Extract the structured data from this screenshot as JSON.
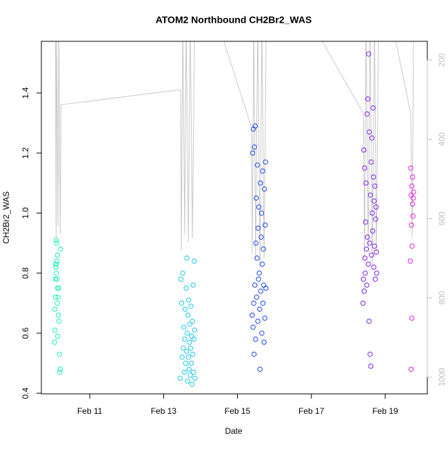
{
  "chart_data": {
    "type": "scatter",
    "title": "ATOM2 Northbound CH2Br2_WAS",
    "x_label": "Date",
    "y_label": "CH2Br2_WAS",
    "xlim": [
      9.69,
      20.14
    ],
    "xticks": [
      {
        "value": 11,
        "label": "Feb 11"
      },
      {
        "value": 13,
        "label": "Feb 13"
      },
      {
        "value": 15,
        "label": "Feb 15"
      },
      {
        "value": 17,
        "label": "Feb 17"
      },
      {
        "value": 19,
        "label": "Feb 19"
      }
    ],
    "ylim": [
      0.398,
      1.572
    ],
    "yticks": [
      0.4,
      0.6,
      0.8,
      {
        "value": 1,
        "label": "1.0"
      },
      1.2,
      1.4
    ],
    "y2lim": [
      1042,
      153
    ],
    "y2ticks": [
      200,
      400,
      600,
      800,
      1000
    ],
    "y2_color": "#bebebe",
    "series": [
      {
        "type": "line",
        "axis": "y2",
        "color": "#c8c8c8",
        "x": [
          10.07,
          10.09,
          10.1,
          10.14,
          10.16,
          10.2,
          10.22,
          13.46,
          13.48,
          13.52,
          13.57,
          13.61,
          13.67,
          13.72,
          13.78,
          13.84,
          14.45,
          15.38,
          15.4,
          15.44,
          15.49,
          15.55,
          15.61,
          15.66,
          15.72,
          15.78,
          16.97,
          18.41,
          18.44,
          18.48,
          18.54,
          18.59,
          18.65,
          18.71,
          18.76,
          18.82,
          19.17,
          19.69,
          19.73,
          19.77
        ],
        "values": [
          100,
          650,
          100,
          620,
          100,
          640,
          313,
          275,
          680,
          100,
          640,
          100,
          660,
          100,
          650,
          100,
          100,
          370,
          690,
          100,
          700,
          100,
          720,
          100,
          700,
          100,
          100,
          335,
          700,
          100,
          690,
          100,
          720,
          100,
          690,
          100,
          100,
          335,
          650,
          100
        ]
      },
      {
        "type": "scatter",
        "color": "#19f0b8",
        "x": [
          10.05,
          10.06,
          10.06,
          10.07,
          10.07,
          10.08,
          10.08,
          10.09,
          10.09,
          10.1,
          10.1,
          10.11,
          10.11,
          10.12,
          10.12,
          10.13,
          10.13,
          10.14,
          10.15,
          10.16,
          10.17,
          10.18,
          10.19,
          10.2,
          10.21
        ],
        "values": [
          0.57,
          0.61,
          0.68,
          0.72,
          0.78,
          0.82,
          0.83,
          0.91,
          0.83,
          0.9,
          0.8,
          0.84,
          0.78,
          0.7,
          0.75,
          0.86,
          0.59,
          0.72,
          0.66,
          0.75,
          0.64,
          0.53,
          0.47,
          0.48,
          0.88
        ]
      },
      {
        "type": "scatter",
        "color": "#1ec8e8",
        "x": [
          13.45,
          13.47,
          13.49,
          13.5,
          13.52,
          13.53,
          13.55,
          13.56,
          13.57,
          13.58,
          13.6,
          13.61,
          13.62,
          13.63,
          13.64,
          13.65,
          13.66,
          13.67,
          13.68,
          13.69,
          13.7,
          13.71,
          13.72,
          13.73,
          13.74,
          13.75,
          13.76,
          13.77,
          13.78,
          13.79,
          13.8,
          13.81,
          13.82,
          13.83,
          13.84,
          13.85
        ],
        "values": [
          0.45,
          0.78,
          0.7,
          0.52,
          0.8,
          0.55,
          0.62,
          0.47,
          0.58,
          0.68,
          0.5,
          0.75,
          0.54,
          0.85,
          0.6,
          0.44,
          0.66,
          0.52,
          0.71,
          0.48,
          0.57,
          0.63,
          0.46,
          0.55,
          0.69,
          0.5,
          0.59,
          0.43,
          0.64,
          0.53,
          0.76,
          0.47,
          0.58,
          0.84,
          0.61,
          0.45
        ]
      },
      {
        "type": "scatter",
        "color": "#1a44f0",
        "x": [
          15.4,
          15.41,
          15.42,
          15.43,
          15.44,
          15.45,
          15.46,
          15.47,
          15.48,
          15.49,
          15.5,
          15.51,
          15.52,
          15.53,
          15.54,
          15.55,
          15.56,
          15.57,
          15.58,
          15.59,
          15.6,
          15.61,
          15.62,
          15.63,
          15.64,
          15.65,
          15.66,
          15.67,
          15.68,
          15.69,
          15.7,
          15.71,
          15.72,
          15.73,
          15.74,
          15.75,
          15.76,
          15.77
        ],
        "values": [
          0.66,
          1.2,
          0.62,
          1.28,
          0.7,
          0.53,
          1.22,
          0.76,
          1.29,
          0.58,
          0.9,
          1.05,
          0.72,
          0.85,
          1.16,
          0.64,
          0.95,
          0.78,
          1.02,
          0.8,
          0.68,
          0.48,
          1.1,
          0.74,
          0.92,
          1.0,
          0.6,
          0.83,
          1.14,
          0.7,
          0.88,
          0.76,
          0.57,
          1.08,
          0.65,
          0.96,
          1.17,
          0.75
        ]
      },
      {
        "type": "scatter",
        "color": "#7a1ef0",
        "x": [
          18.4,
          18.41,
          18.42,
          18.43,
          18.44,
          18.45,
          18.46,
          18.47,
          18.48,
          18.49,
          18.5,
          18.51,
          18.52,
          18.53,
          18.54,
          18.55,
          18.56,
          18.57,
          18.58,
          18.59,
          18.6,
          18.61,
          18.62,
          18.63,
          18.64,
          18.65,
          18.66,
          18.67,
          18.68,
          18.69,
          18.7,
          18.71,
          18.72,
          18.73,
          18.74,
          18.75,
          18.76,
          18.77
        ],
        "values": [
          0.7,
          0.78,
          1.21,
          0.74,
          1.15,
          0.85,
          0.8,
          0.97,
          1.1,
          0.88,
          0.76,
          1.33,
          0.92,
          1.38,
          0.83,
          1.53,
          0.64,
          1.27,
          0.9,
          0.53,
          1.06,
          0.49,
          1.17,
          0.86,
          1.25,
          1.0,
          0.94,
          1.35,
          1.12,
          0.82,
          1.04,
          0.89,
          1.09,
          0.78,
          0.98,
          1.02,
          0.87,
          0.8
        ]
      },
      {
        "type": "scatter",
        "color": "#e020e8",
        "x": [
          19.68,
          19.69,
          19.7,
          19.7,
          19.71,
          19.72,
          19.72,
          19.73,
          19.74,
          19.74,
          19.75,
          19.76,
          19.77
        ],
        "values": [
          0.84,
          1.15,
          0.48,
          1.06,
          0.96,
          1.09,
          0.65,
          0.89,
          1.03,
          1.12,
          0.99,
          1.05,
          1.07
        ]
      }
    ]
  }
}
